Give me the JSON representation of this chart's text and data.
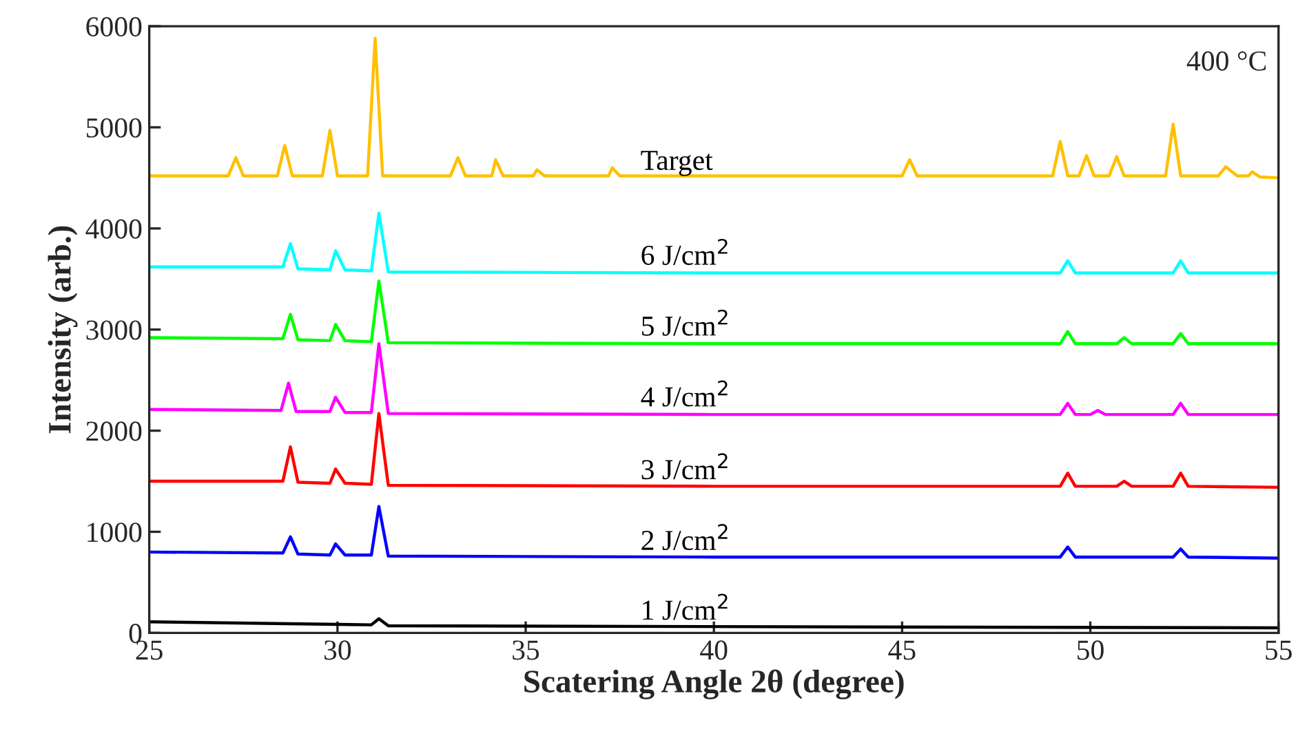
{
  "chart_data": {
    "type": "line",
    "xlabel": "Scatering Angle 2θ (degree)",
    "ylabel": "Intensity (arb.)",
    "annotations": [
      "400 °C"
    ],
    "xlim": [
      25,
      55
    ],
    "xticks": [
      25,
      30,
      35,
      40,
      45,
      50,
      55
    ],
    "ylim": [
      0,
      6000
    ],
    "yticks": [
      0,
      1000,
      2000,
      3000,
      4000,
      5000,
      6000
    ],
    "grid": false,
    "legend": false,
    "marker": "none",
    "line_style": "solid",
    "series": [
      {
        "name": "Target",
        "color": "#ffc000",
        "x": [
          25,
          27.1,
          27.3,
          27.5,
          28.4,
          28.6,
          28.8,
          29.6,
          29.8,
          30.0,
          30.8,
          31.0,
          31.2,
          33.0,
          33.2,
          33.4,
          34.1,
          34.2,
          34.4,
          35.2,
          35.3,
          35.5,
          37.2,
          37.3,
          37.5,
          45.0,
          45.2,
          45.4,
          49.0,
          49.2,
          49.4,
          49.7,
          49.9,
          50.1,
          50.5,
          50.7,
          50.9,
          52.0,
          52.2,
          52.4,
          53.4,
          53.6,
          53.9,
          54.2,
          54.3,
          54.5,
          55
        ],
        "values": [
          4520,
          4520,
          4700,
          4520,
          4520,
          4820,
          4520,
          4520,
          4970,
          4520,
          4520,
          5880,
          4520,
          4520,
          4700,
          4520,
          4520,
          4680,
          4520,
          4520,
          4580,
          4520,
          4520,
          4600,
          4520,
          4520,
          4680,
          4520,
          4520,
          4860,
          4520,
          4520,
          4720,
          4520,
          4520,
          4710,
          4520,
          4520,
          5030,
          4520,
          4520,
          4610,
          4520,
          4520,
          4560,
          4510,
          4500
        ]
      },
      {
        "name": "6 J/cm$^{2}$",
        "color": "#00ffff",
        "x": [
          25,
          28.55,
          28.75,
          28.95,
          29.8,
          29.95,
          30.2,
          30.9,
          31.1,
          31.35,
          40,
          49.2,
          49.4,
          49.6,
          52.2,
          52.4,
          52.6,
          55
        ],
        "values": [
          3620,
          3620,
          3850,
          3600,
          3590,
          3780,
          3590,
          3580,
          4150,
          3570,
          3560,
          3560,
          3680,
          3560,
          3560,
          3680,
          3560,
          3560
        ]
      },
      {
        "name": "5 J/cm$^{2}$",
        "color": "#00ff00",
        "x": [
          25,
          28.55,
          28.75,
          28.95,
          29.8,
          29.95,
          30.2,
          30.9,
          31.1,
          31.35,
          40,
          49.2,
          49.4,
          49.6,
          50.7,
          50.9,
          51.1,
          52.2,
          52.4,
          52.6,
          55
        ],
        "values": [
          2920,
          2910,
          3150,
          2900,
          2890,
          3050,
          2890,
          2880,
          3480,
          2870,
          2860,
          2860,
          2980,
          2860,
          2860,
          2920,
          2860,
          2860,
          2960,
          2860,
          2860
        ]
      },
      {
        "name": "4 J/cm$^{2}$",
        "color": "#ff00ff",
        "x": [
          25,
          28.5,
          28.7,
          28.9,
          29.8,
          29.95,
          30.2,
          30.9,
          31.1,
          31.35,
          40,
          49.2,
          49.4,
          49.6,
          50.0,
          50.2,
          50.4,
          52.2,
          52.4,
          52.6,
          55
        ],
        "values": [
          2210,
          2200,
          2470,
          2190,
          2190,
          2330,
          2180,
          2180,
          2860,
          2170,
          2160,
          2160,
          2270,
          2160,
          2160,
          2200,
          2160,
          2160,
          2270,
          2160,
          2160
        ]
      },
      {
        "name": "3 J/cm$^{2}$",
        "color": "#ff0000",
        "x": [
          25,
          28.55,
          28.75,
          28.95,
          29.8,
          29.95,
          30.2,
          30.9,
          31.1,
          31.35,
          40,
          49.2,
          49.4,
          49.6,
          50.7,
          50.9,
          51.1,
          52.2,
          52.4,
          52.6,
          55
        ],
        "values": [
          1500,
          1500,
          1840,
          1490,
          1480,
          1620,
          1480,
          1470,
          2170,
          1460,
          1450,
          1450,
          1580,
          1450,
          1450,
          1500,
          1450,
          1450,
          1580,
          1450,
          1440
        ]
      },
      {
        "name": "2 J/cm$^{2}$",
        "color": "#0000ff",
        "x": [
          25,
          28.55,
          28.75,
          28.95,
          29.8,
          29.95,
          30.2,
          30.9,
          31.1,
          31.35,
          40,
          49.2,
          49.4,
          49.6,
          52.2,
          52.4,
          52.6,
          55
        ],
        "values": [
          800,
          790,
          950,
          780,
          770,
          880,
          770,
          770,
          1250,
          760,
          750,
          750,
          850,
          750,
          750,
          830,
          750,
          740
        ]
      },
      {
        "name": "1 J/cm$^{2}$",
        "color": "#000000",
        "x": [
          25,
          30.9,
          31.1,
          31.35,
          55
        ],
        "values": [
          110,
          80,
          140,
          70,
          50
        ]
      }
    ]
  }
}
